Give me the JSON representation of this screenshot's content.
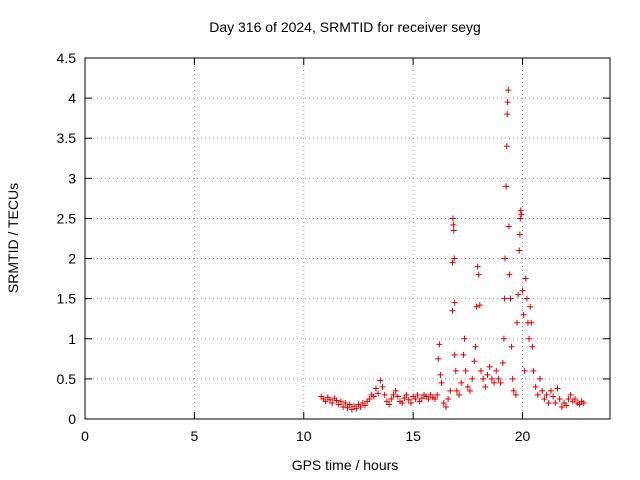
{
  "chart_data": {
    "type": "scatter",
    "title": "Day 316 of 2024, SRMTID for receiver seyg",
    "xlabel": "GPS time / hours",
    "ylabel": "SRMTID / TECUs",
    "xlim": [
      0,
      24
    ],
    "ylim": [
      0,
      4.5
    ],
    "x_ticks": [
      "0",
      "5",
      "10",
      "15",
      "20"
    ],
    "x_tick_values": [
      0,
      5,
      10,
      15,
      20
    ],
    "y_ticks": [
      "0",
      "0.5",
      "1",
      "1.5",
      "2",
      "2.5",
      "3",
      "3.5",
      "4",
      "4.5"
    ],
    "y_tick_values": [
      0,
      0.5,
      1,
      1.5,
      2,
      2.5,
      3,
      3.5,
      4,
      4.5
    ],
    "grid": true,
    "marker": "+",
    "series": [
      {
        "name": "SRMTID",
        "color": "#e00000",
        "points": [
          [
            10.8,
            0.28
          ],
          [
            10.9,
            0.25
          ],
          [
            11.0,
            0.22
          ],
          [
            11.1,
            0.27
          ],
          [
            11.2,
            0.24
          ],
          [
            11.3,
            0.2
          ],
          [
            11.4,
            0.26
          ],
          [
            11.5,
            0.23
          ],
          [
            11.6,
            0.18
          ],
          [
            11.7,
            0.22
          ],
          [
            11.8,
            0.15
          ],
          [
            11.9,
            0.2
          ],
          [
            12.0,
            0.14
          ],
          [
            12.1,
            0.18
          ],
          [
            12.2,
            0.12
          ],
          [
            12.3,
            0.16
          ],
          [
            12.4,
            0.13
          ],
          [
            12.5,
            0.18
          ],
          [
            12.6,
            0.15
          ],
          [
            12.7,
            0.2
          ],
          [
            12.8,
            0.17
          ],
          [
            12.9,
            0.22
          ],
          [
            13.0,
            0.25
          ],
          [
            13.1,
            0.3
          ],
          [
            13.2,
            0.28
          ],
          [
            13.3,
            0.38
          ],
          [
            13.4,
            0.32
          ],
          [
            13.5,
            0.48
          ],
          [
            13.6,
            0.4
          ],
          [
            13.7,
            0.3
          ],
          [
            13.8,
            0.22
          ],
          [
            13.9,
            0.18
          ],
          [
            14.0,
            0.25
          ],
          [
            14.1,
            0.3
          ],
          [
            14.2,
            0.35
          ],
          [
            14.3,
            0.28
          ],
          [
            14.4,
            0.22
          ],
          [
            14.5,
            0.2
          ],
          [
            14.6,
            0.26
          ],
          [
            14.7,
            0.3
          ],
          [
            14.8,
            0.24
          ],
          [
            14.9,
            0.2
          ],
          [
            15.0,
            0.28
          ],
          [
            15.1,
            0.25
          ],
          [
            15.2,
            0.3
          ],
          [
            15.3,
            0.22
          ],
          [
            15.4,
            0.26
          ],
          [
            15.5,
            0.3
          ],
          [
            15.6,
            0.28
          ],
          [
            15.7,
            0.25
          ],
          [
            15.8,
            0.3
          ],
          [
            15.9,
            0.27
          ],
          [
            16.0,
            0.25
          ],
          [
            16.1,
            0.3
          ],
          [
            16.15,
            0.75
          ],
          [
            16.2,
            0.93
          ],
          [
            16.25,
            0.55
          ],
          [
            16.3,
            0.45
          ],
          [
            16.4,
            0.2
          ],
          [
            16.5,
            0.15
          ],
          [
            16.6,
            0.25
          ],
          [
            16.7,
            0.35
          ],
          [
            16.8,
            1.35
          ],
          [
            16.8,
            1.95
          ],
          [
            16.82,
            2.5
          ],
          [
            16.84,
            2.42
          ],
          [
            16.86,
            2.35
          ],
          [
            16.88,
            2.0
          ],
          [
            16.9,
            1.45
          ],
          [
            16.9,
            0.8
          ],
          [
            16.95,
            0.6
          ],
          [
            17.0,
            0.35
          ],
          [
            17.1,
            0.3
          ],
          [
            17.2,
            0.45
          ],
          [
            17.3,
            0.8
          ],
          [
            17.35,
            1.0
          ],
          [
            17.4,
            0.6
          ],
          [
            17.5,
            0.4
          ],
          [
            17.6,
            0.35
          ],
          [
            17.7,
            0.5
          ],
          [
            17.8,
            0.72
          ],
          [
            17.85,
            0.9
          ],
          [
            17.9,
            1.4
          ],
          [
            17.95,
            1.9
          ],
          [
            18.0,
            1.8
          ],
          [
            18.05,
            1.42
          ],
          [
            18.1,
            0.6
          ],
          [
            18.2,
            0.5
          ],
          [
            18.3,
            0.4
          ],
          [
            18.4,
            0.55
          ],
          [
            18.5,
            0.65
          ],
          [
            18.6,
            0.5
          ],
          [
            18.7,
            0.45
          ],
          [
            18.8,
            0.6
          ],
          [
            18.9,
            0.5
          ],
          [
            19.0,
            0.45
          ],
          [
            19.1,
            0.7
          ],
          [
            19.15,
            1.0
          ],
          [
            19.18,
            1.5
          ],
          [
            19.2,
            2.0
          ],
          [
            19.25,
            2.9
          ],
          [
            19.28,
            3.4
          ],
          [
            19.3,
            3.8
          ],
          [
            19.32,
            3.95
          ],
          [
            19.35,
            4.1
          ],
          [
            19.38,
            2.4
          ],
          [
            19.4,
            1.8
          ],
          [
            19.45,
            1.5
          ],
          [
            19.5,
            0.9
          ],
          [
            19.55,
            0.5
          ],
          [
            19.6,
            0.35
          ],
          [
            19.7,
            0.3
          ],
          [
            19.75,
            1.2
          ],
          [
            19.8,
            1.55
          ],
          [
            19.85,
            2.1
          ],
          [
            19.88,
            2.3
          ],
          [
            19.9,
            2.5
          ],
          [
            19.92,
            2.6
          ],
          [
            19.95,
            2.55
          ],
          [
            20.0,
            1.6
          ],
          [
            20.05,
            1.3
          ],
          [
            20.1,
            0.6
          ],
          [
            20.15,
            1.75
          ],
          [
            20.2,
            1.5
          ],
          [
            20.25,
            1.2
          ],
          [
            20.3,
            1.0
          ],
          [
            20.35,
            1.4
          ],
          [
            20.4,
            1.2
          ],
          [
            20.45,
            0.9
          ],
          [
            20.5,
            0.6
          ],
          [
            20.6,
            0.4
          ],
          [
            20.7,
            0.3
          ],
          [
            20.8,
            0.5
          ],
          [
            20.9,
            0.35
          ],
          [
            21.0,
            0.25
          ],
          [
            21.1,
            0.3
          ],
          [
            21.2,
            0.2
          ],
          [
            21.3,
            0.35
          ],
          [
            21.4,
            0.28
          ],
          [
            21.5,
            0.2
          ],
          [
            21.6,
            0.38
          ],
          [
            21.7,
            0.25
          ],
          [
            21.8,
            0.15
          ],
          [
            21.9,
            0.2
          ],
          [
            22.0,
            0.17
          ],
          [
            22.1,
            0.25
          ],
          [
            22.2,
            0.3
          ],
          [
            22.3,
            0.22
          ],
          [
            22.4,
            0.25
          ],
          [
            22.5,
            0.2
          ],
          [
            22.6,
            0.18
          ],
          [
            22.7,
            0.22
          ],
          [
            22.8,
            0.2
          ]
        ]
      }
    ]
  }
}
